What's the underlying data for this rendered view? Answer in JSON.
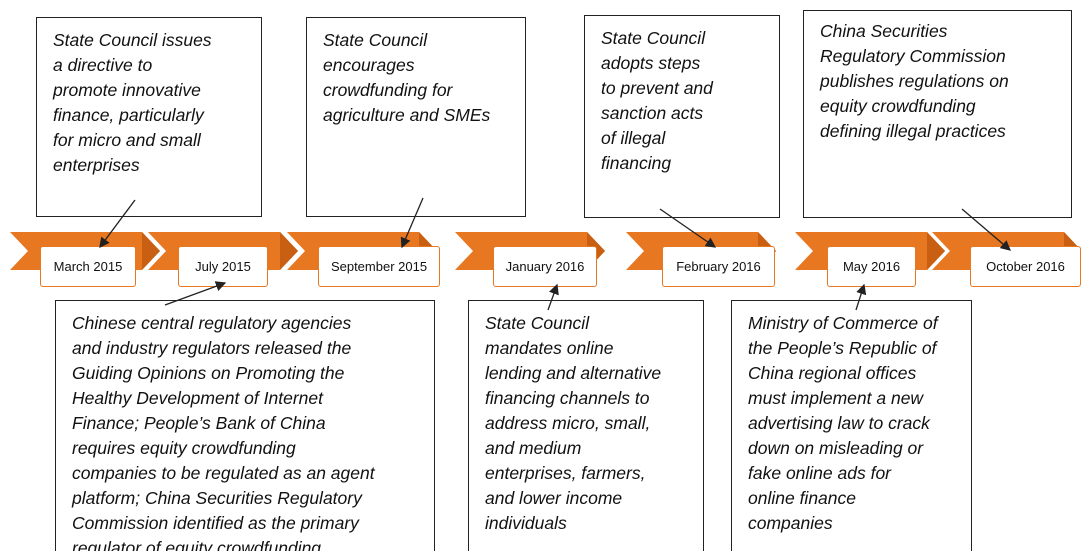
{
  "dates": [
    "March 2015",
    "July 2015",
    "September 2015",
    "January 2016",
    "February 2016",
    "May 2016",
    "October 2016"
  ],
  "events": [
    {
      "lines": [
        "State Council issues",
        "a directive to",
        "promote innovative",
        "finance, particularly",
        "for micro and small",
        "enterprises"
      ]
    },
    {
      "lines": [
        "State Council",
        "encourages",
        "crowdfunding for",
        "agriculture and SMEs"
      ]
    },
    {
      "lines": [
        "State Council",
        "adopts steps",
        "to prevent and",
        "sanction acts",
        "of illegal",
        "financing"
      ]
    },
    {
      "lines": [
        "China Securities",
        "Regulatory Commission",
        "publishes regulations on",
        "equity crowdfunding",
        "defining illegal practices"
      ]
    },
    {
      "lines": [
        "Chinese central regulatory agencies",
        "and industry regulators released the",
        "Guiding Opinions on Promoting the",
        "Healthy Development of Internet",
        "Finance; People’s Bank of China",
        "requires equity crowdfunding",
        "companies to be regulated as an agent",
        "platform; China Securities Regulatory",
        "Commission identified as the primary",
        "regulator of equity crowdfunding"
      ]
    },
    {
      "lines": [
        "State Council",
        "mandates online",
        "lending and alternative",
        "financing channels to",
        "address micro, small,",
        "and medium",
        "enterprises, farmers,",
        "and lower income",
        "individuals"
      ]
    },
    {
      "lines": [
        "Ministry of Commerce of",
        "the People’s Republic of",
        "China regional offices",
        "must implement a new",
        "advertising law to crack",
        "down on misleading or",
        "fake online ads for",
        "online finance",
        "companies"
      ]
    }
  ]
}
